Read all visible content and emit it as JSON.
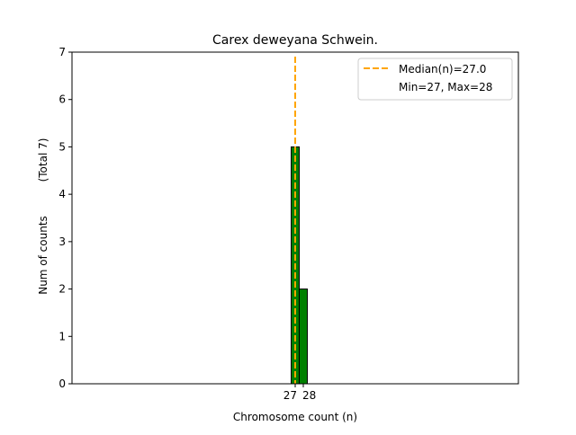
{
  "chart_data": {
    "type": "bar",
    "title": "Carex deweyana Schwein.",
    "xlabel": "Chromosome count (n)",
    "ylabel": "Num of counts",
    "ylabel_total": "(Total 7)",
    "x": [
      27,
      28
    ],
    "values": [
      5,
      2
    ],
    "xlim": [
      -0.6,
      54.6
    ],
    "ylim": [
      0,
      7
    ],
    "yticks": [
      0,
      1,
      2,
      3,
      4,
      5,
      6,
      7
    ],
    "xticks": [
      27,
      28
    ],
    "zero_bins_range": [
      -0.5,
      31.5
    ],
    "bar_color": "#008000",
    "median": 27.0,
    "median_color": "#FFA500",
    "legend": {
      "position": "top-right",
      "entries": [
        "Median(n)=27.0",
        "Min=27, Max=28"
      ]
    }
  }
}
